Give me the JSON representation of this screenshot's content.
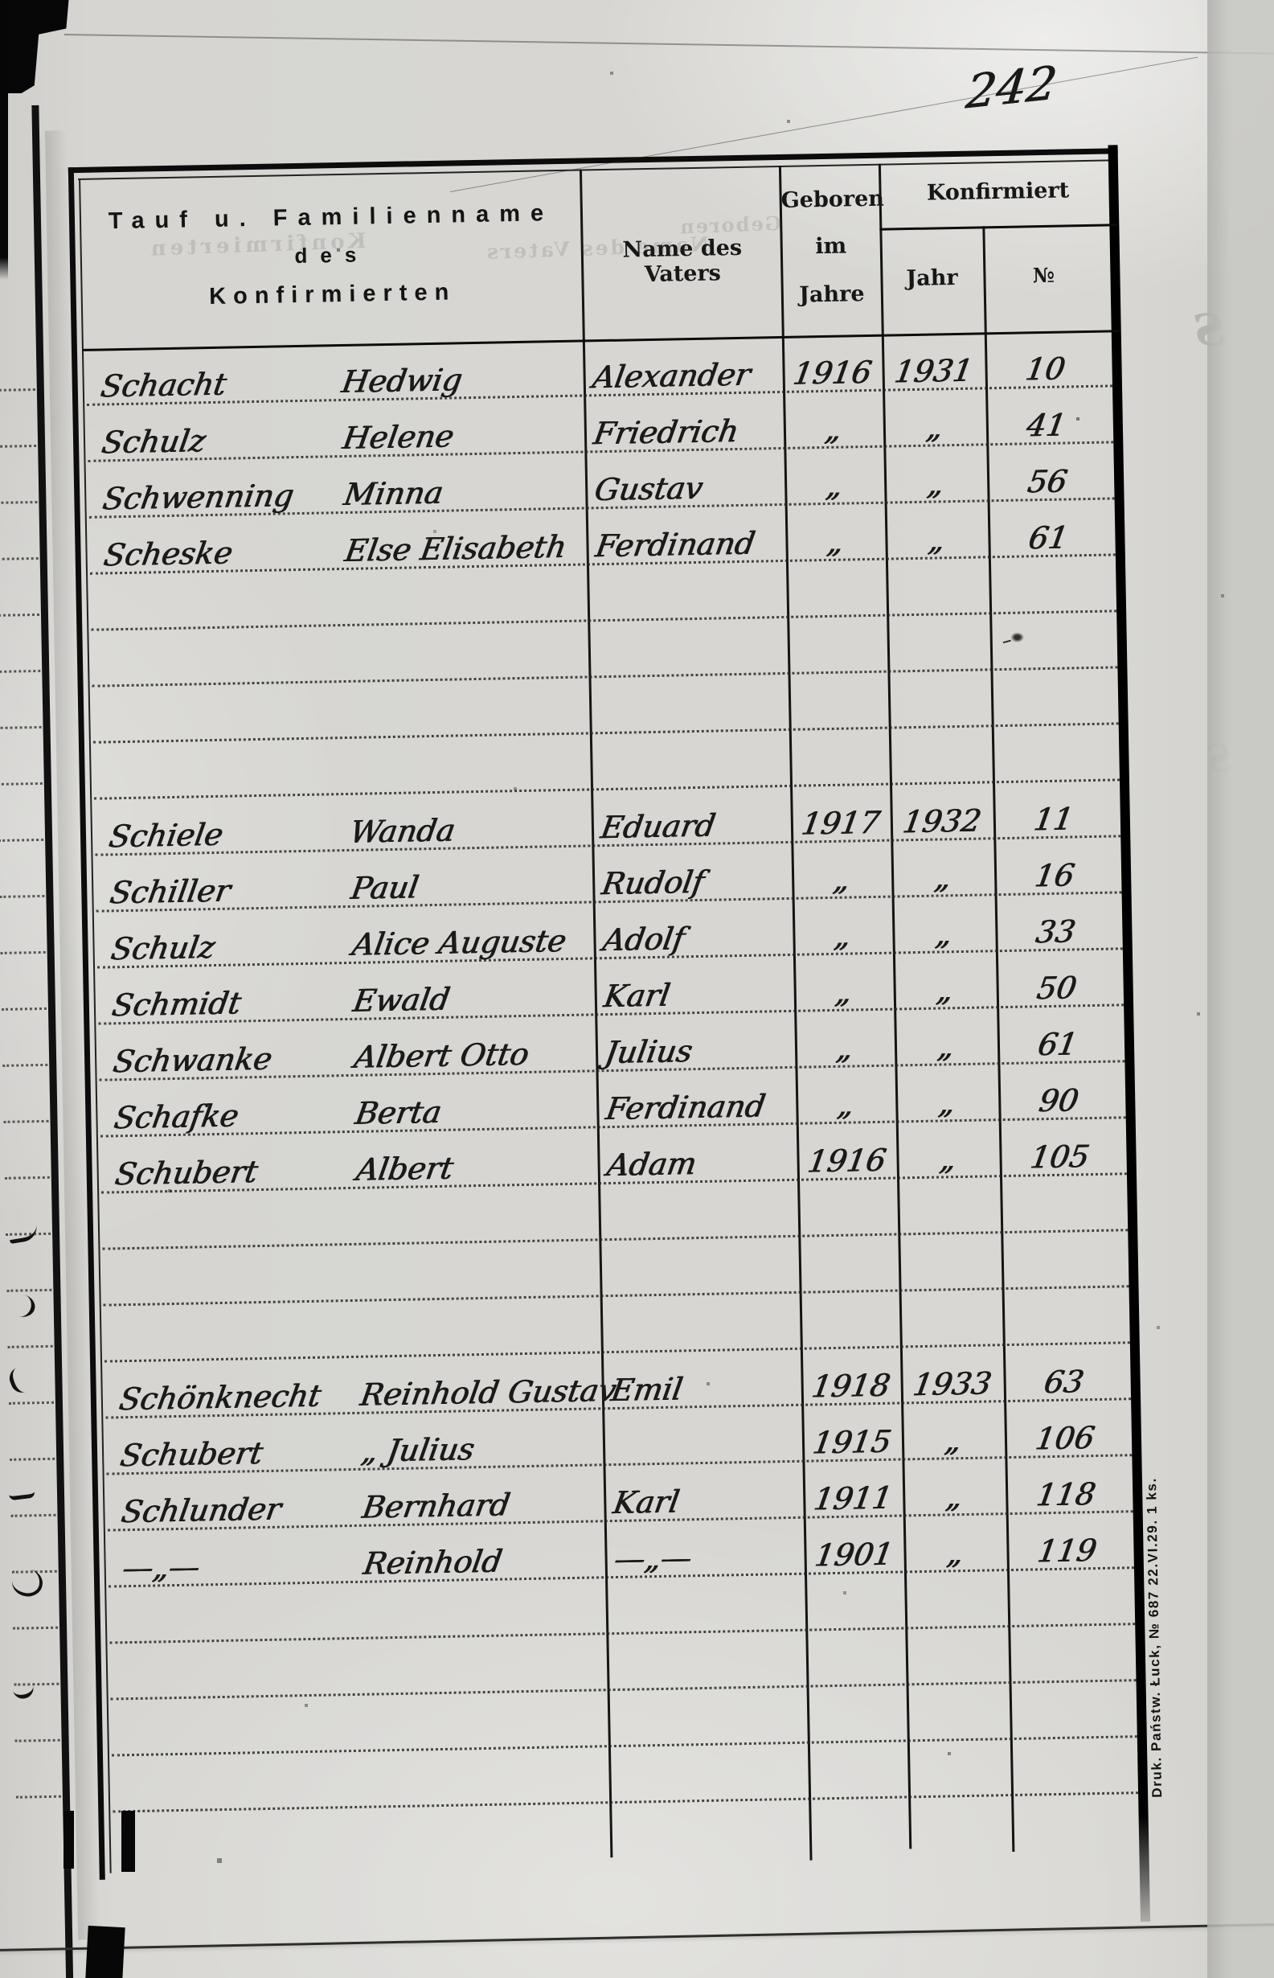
{
  "page_number": "242",
  "imprint": "Druk. Państw. Łuck, № 687 22.VI.29. 1 ks.",
  "header": {
    "name_col": [
      "Tauf u. Familienname",
      "des",
      "Konfirmierten"
    ],
    "father_col": "Name des Vaters",
    "born_col": [
      "Geboren",
      "im",
      "Jahre"
    ],
    "confirmed_col": "Konfirmiert",
    "confirmed_year": "Jahr",
    "confirmed_no": "№"
  },
  "bleed": {
    "text1": "Konfirmierten",
    "text2": "Name des Vaters",
    "text3": "Geboren"
  },
  "blocks": [
    {
      "rows": [
        {
          "surname": "Schacht",
          "given": "Hedwig",
          "father": "Alexander",
          "born": "1916",
          "year": "1931",
          "no": "10"
        },
        {
          "surname": "Schulz",
          "given": "Helene",
          "father": "Friedrich",
          "born": "„",
          "year": "„",
          "no": "41"
        },
        {
          "surname": "Schwenning",
          "given": "Minna",
          "father": "Gustav",
          "born": "„",
          "year": "„",
          "no": "56"
        },
        {
          "surname": "Scheske",
          "given": "Else Elisabeth",
          "father": "Ferdinand",
          "born": "„",
          "year": "„",
          "no": "61"
        }
      ]
    },
    {
      "rows": [
        {
          "surname": "Schiele",
          "given": "Wanda",
          "father": "Eduard",
          "born": "1917",
          "year": "1932",
          "no": "11"
        },
        {
          "surname": "Schiller",
          "given": "Paul",
          "father": "Rudolf",
          "born": "„",
          "year": "„",
          "no": "16"
        },
        {
          "surname": "Schulz",
          "given": "Alice Auguste",
          "father": "Adolf",
          "born": "„",
          "year": "„",
          "no": "33"
        },
        {
          "surname": "Schmidt",
          "given": "Ewald",
          "father": "Karl",
          "born": "„",
          "year": "„",
          "no": "50"
        },
        {
          "surname": "Schwanke",
          "given": "Albert Otto",
          "father": "Julius",
          "born": "„",
          "year": "„",
          "no": "61"
        },
        {
          "surname": "Schafke",
          "given": "Berta",
          "father": "Ferdinand",
          "born": "„",
          "year": "„",
          "no": "90"
        },
        {
          "surname": "Schubert",
          "given": "Albert",
          "father": "Adam",
          "born": "1916",
          "year": "„",
          "no": "105"
        }
      ]
    },
    {
      "rows": [
        {
          "surname": "Schönknecht",
          "given": "Reinhold Gustav",
          "father": "Emil",
          "born": "1918",
          "year": "1933",
          "no": "63"
        },
        {
          "surname": "Schubert",
          "given": "„ Julius",
          "father": "",
          "born": "1915",
          "year": "„",
          "no": "106"
        },
        {
          "surname": "Schlunder",
          "given": "Bernhard",
          "father": "Karl",
          "born": "1911",
          "year": "„",
          "no": "118"
        },
        {
          "surname": "—„—",
          "given": "Reinhold",
          "father": "—„—",
          "born": "1901",
          "year": "„",
          "no": "119"
        }
      ]
    }
  ]
}
